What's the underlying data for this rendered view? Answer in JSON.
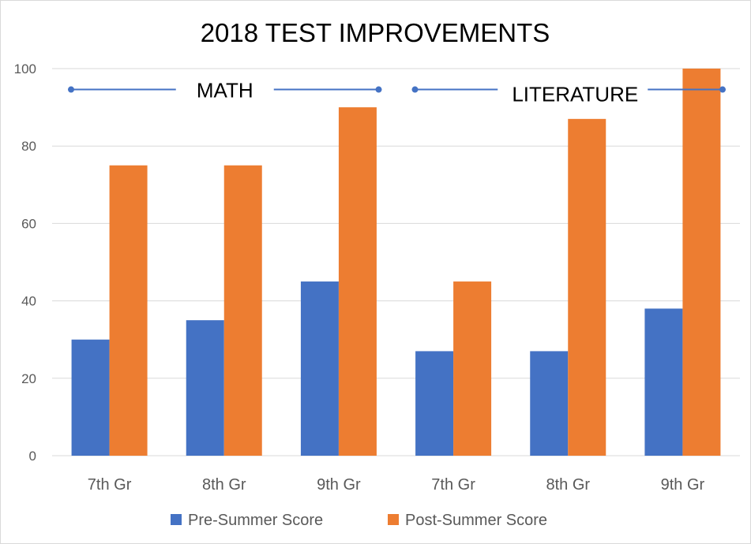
{
  "chart_data": {
    "type": "bar",
    "title": "2018 TEST IMPROVEMENTS",
    "xlabel": "",
    "ylabel": "",
    "categories": [
      "7th Gr",
      "8th Gr",
      "9th Gr",
      "7th Gr",
      "8th Gr",
      "9th Gr"
    ],
    "series": [
      {
        "name": "Pre-Summer Score",
        "color": "#4472C4",
        "values": [
          30,
          35,
          45,
          27,
          27,
          38
        ]
      },
      {
        "name": "Post-Summer Score",
        "color": "#ED7D31",
        "values": [
          75,
          75,
          90,
          45,
          87,
          100
        ]
      }
    ],
    "ylim": [
      0,
      100
    ],
    "yticks": [
      0,
      20,
      40,
      60,
      80,
      100
    ],
    "grid": true,
    "legend": "bottom",
    "annotations": [
      {
        "text": "MATH",
        "spans_categories": [
          0,
          2
        ],
        "y": 95,
        "color": "#4472C4"
      },
      {
        "text": "LITERATURE",
        "spans_categories": [
          3,
          5
        ],
        "y": 95,
        "color": "#4472C4"
      }
    ]
  }
}
